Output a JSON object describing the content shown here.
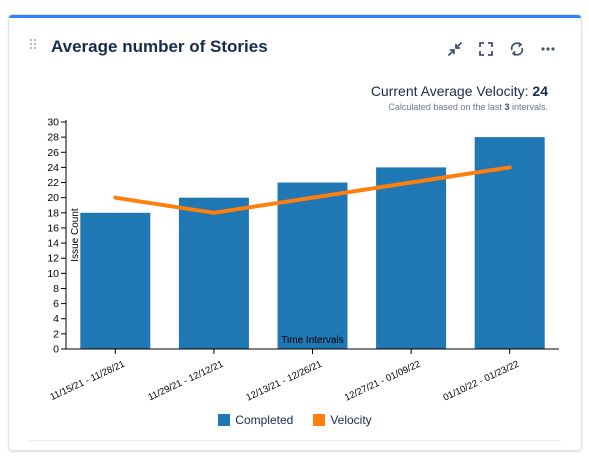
{
  "widget": {
    "title": "Average number of Stories",
    "velocity_label": "Current Average Velocity:",
    "velocity_value": "24",
    "sub_prefix": "Calculated based on the last",
    "sub_count": "3",
    "sub_suffix": "intervals.",
    "toolbar_icons": [
      "collapse-icon",
      "fullscreen-icon",
      "refresh-icon",
      "more-icon"
    ]
  },
  "chart_data": {
    "type": "bar",
    "categories": [
      "11/15/21 - 11/28/21",
      "11/29/21 - 12/12/21",
      "12/13/21 - 12/26/21",
      "12/27/21 - 01/09/22",
      "01/10/22 - 01/23/22"
    ],
    "series": [
      {
        "name": "Completed",
        "type": "bar",
        "values": [
          18,
          20,
          22,
          24,
          28
        ],
        "color": "#1f77b4"
      },
      {
        "name": "Velocity",
        "type": "line",
        "values": [
          20,
          18,
          20,
          22,
          24
        ],
        "color": "#ff7f0e"
      }
    ],
    "xlabel": "Time Intervals",
    "ylabel": "Issue Count",
    "ylim": [
      0,
      30
    ],
    "yticks": [
      0,
      2,
      4,
      6,
      8,
      10,
      12,
      14,
      16,
      18,
      20,
      22,
      24,
      26,
      28,
      30
    ],
    "legend": "bottom"
  }
}
